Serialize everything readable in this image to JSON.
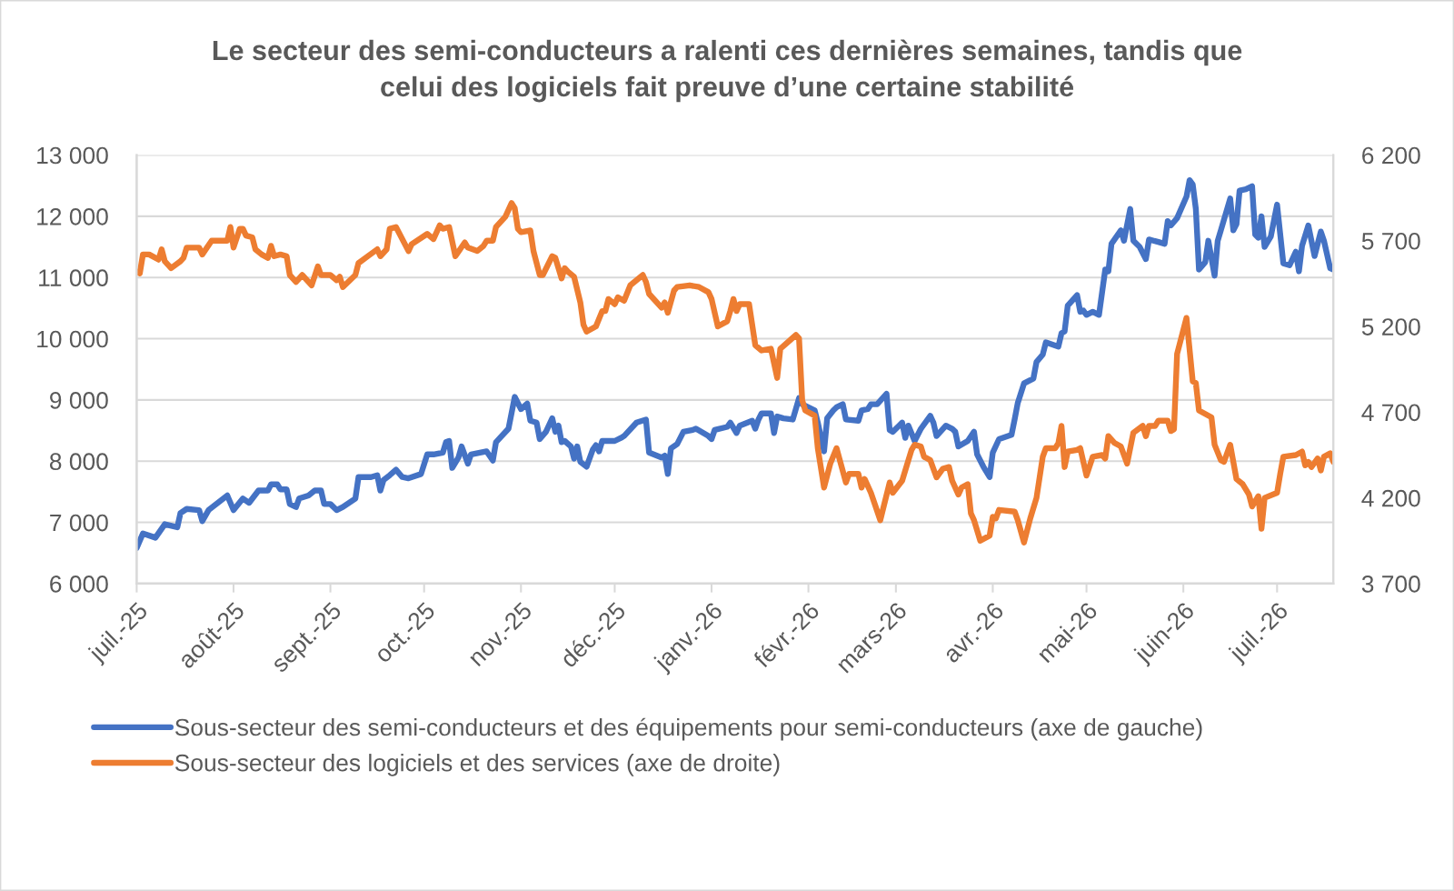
{
  "chart_data": {
    "type": "line",
    "title": "Le secteur des semi-conducteurs a ralenti ces dernières semaines, tandis que\ncelui des logiciels fait preuve d’une certaine stabilité",
    "xlim": [
      "2025-07-01",
      "2026-07-19"
    ],
    "xticks": [
      {
        "value": "2025-07-01",
        "label": "juil.-25"
      },
      {
        "value": "2025-08-01",
        "label": "août-25"
      },
      {
        "value": "2025-09-01",
        "label": "sept.-25"
      },
      {
        "value": "2025-10-01",
        "label": "oct.-25"
      },
      {
        "value": "2025-11-01",
        "label": "nov.-25"
      },
      {
        "value": "2025-12-01",
        "label": "déc.-25"
      },
      {
        "value": "2026-01-01",
        "label": "janv.-26"
      },
      {
        "value": "2026-02-01",
        "label": "févr.-26"
      },
      {
        "value": "2026-03-01",
        "label": "mars-26"
      },
      {
        "value": "2026-04-01",
        "label": "avr.-26"
      },
      {
        "value": "2026-05-01",
        "label": "mai-26"
      },
      {
        "value": "2026-06-01",
        "label": "juin-26"
      },
      {
        "value": "2026-07-01",
        "label": "juil.-26"
      }
    ],
    "ylim": [
      6000,
      13000
    ],
    "yticks": [
      {
        "value": 6000,
        "label": "6 000"
      },
      {
        "value": 7000,
        "label": "7 000"
      },
      {
        "value": 8000,
        "label": "8 000"
      },
      {
        "value": 9000,
        "label": "9 000"
      },
      {
        "value": 10000,
        "label": "10 000"
      },
      {
        "value": 11000,
        "label": "11 000"
      },
      {
        "value": 12000,
        "label": "12 000"
      },
      {
        "value": 13000,
        "label": "13 000"
      }
    ],
    "y2lim": [
      3700,
      6200
    ],
    "y2ticks": [
      {
        "value": 3700,
        "label": "3 700"
      },
      {
        "value": 4200,
        "label": "4 200"
      },
      {
        "value": 4700,
        "label": "4 700"
      },
      {
        "value": 5200,
        "label": "5 200"
      },
      {
        "value": 5700,
        "label": "5 700"
      },
      {
        "value": 6200,
        "label": "6 200"
      }
    ],
    "grid": "y",
    "legend": "bottom",
    "series": [
      {
        "name": "Sous-secteur des semi-conducteurs et des équipements pour semi-conducteurs (axe de gauche)",
        "color": "#4472c4",
        "axis": "y",
        "x": [
          "2025-07-01",
          "2025-07-03",
          "2025-07-07",
          "2025-07-10",
          "2025-07-14",
          "2025-07-15",
          "2025-07-17",
          "2025-07-21",
          "2025-07-22",
          "2025-07-24",
          "2025-07-30",
          "2025-08-01",
          "2025-08-04",
          "2025-08-06",
          "2025-08-09",
          "2025-08-12",
          "2025-08-13",
          "2025-08-15",
          "2025-08-16",
          "2025-08-18",
          "2025-08-19",
          "2025-08-21",
          "2025-08-22",
          "2025-08-25",
          "2025-08-27",
          "2025-08-29",
          "2025-08-30",
          "2025-09-01",
          "2025-09-03",
          "2025-09-05",
          "2025-09-09",
          "2025-09-10",
          "2025-09-14",
          "2025-09-16",
          "2025-09-17",
          "2025-09-18",
          "2025-09-20",
          "2025-09-22",
          "2025-09-24",
          "2025-09-26",
          "2025-09-30",
          "2025-10-02",
          "2025-10-04",
          "2025-10-07",
          "2025-10-08",
          "2025-10-09",
          "2025-10-10",
          "2025-10-12",
          "2025-10-13",
          "2025-10-15",
          "2025-10-16",
          "2025-10-21",
          "2025-10-23",
          "2025-10-24",
          "2025-10-28",
          "2025-10-30",
          "2025-11-01",
          "2025-11-03",
          "2025-11-04",
          "2025-11-06",
          "2025-11-07",
          "2025-11-09",
          "2025-11-11",
          "2025-11-12",
          "2025-11-13",
          "2025-11-14",
          "2025-11-15",
          "2025-11-17",
          "2025-11-18",
          "2025-11-19",
          "2025-11-20",
          "2025-11-22",
          "2025-11-24",
          "2025-11-25",
          "2025-11-26",
          "2025-11-27",
          "2025-12-01",
          "2025-12-03",
          "2025-12-04",
          "2025-12-08",
          "2025-12-11",
          "2025-12-12",
          "2025-12-16",
          "2025-12-17",
          "2025-12-18",
          "2025-12-19",
          "2025-12-21",
          "2025-12-23",
          "2025-12-26",
          "2025-12-27",
          "2025-12-31",
          "2026-01-01",
          "2026-01-02",
          "2026-01-06",
          "2026-01-07",
          "2026-01-09",
          "2026-01-10",
          "2026-01-14",
          "2026-01-15",
          "2026-01-16",
          "2026-01-17",
          "2026-01-20",
          "2026-01-21",
          "2026-01-22",
          "2026-01-24",
          "2026-01-27",
          "2026-01-29",
          "2026-01-30",
          "2026-02-03",
          "2026-02-04",
          "2026-02-06",
          "2026-02-07",
          "2026-02-09",
          "2026-02-10",
          "2026-02-12",
          "2026-02-13",
          "2026-02-17",
          "2026-02-18",
          "2026-02-20",
          "2026-02-21",
          "2026-02-23",
          "2026-02-26",
          "2026-02-27",
          "2026-02-28",
          "2026-03-02",
          "2026-03-03",
          "2026-03-04",
          "2026-03-05",
          "2026-03-07",
          "2026-03-09",
          "2026-03-12",
          "2026-03-13",
          "2026-03-14",
          "2026-03-17",
          "2026-03-19",
          "2026-03-20",
          "2026-03-21",
          "2026-03-24",
          "2026-03-26",
          "2026-03-27",
          "2026-03-29",
          "2026-03-31",
          "2026-04-01",
          "2026-04-03",
          "2026-04-07",
          "2026-04-08",
          "2026-04-09",
          "2026-04-11",
          "2026-04-14",
          "2026-04-15",
          "2026-04-17",
          "2026-04-18",
          "2026-04-22",
          "2026-04-23",
          "2026-04-24",
          "2026-04-25",
          "2026-04-28",
          "2026-04-29",
          "2026-04-30",
          "2026-05-01",
          "2026-05-03",
          "2026-05-05",
          "2026-05-07",
          "2026-05-08",
          "2026-05-09",
          "2026-05-12",
          "2026-05-13",
          "2026-05-15",
          "2026-05-16",
          "2026-05-18",
          "2026-05-20",
          "2026-05-21",
          "2026-05-24",
          "2026-05-26",
          "2026-05-27",
          "2026-05-28",
          "2026-05-30",
          "2026-06-02",
          "2026-06-03",
          "2026-06-04",
          "2026-06-05",
          "2026-06-06",
          "2026-06-08",
          "2026-06-09",
          "2026-06-11",
          "2026-06-12",
          "2026-06-13",
          "2026-06-16",
          "2026-06-17",
          "2026-06-18",
          "2026-06-19",
          "2026-06-21",
          "2026-06-23",
          "2026-06-24",
          "2026-06-25",
          "2026-06-26",
          "2026-06-27",
          "2026-06-29",
          "2026-07-01",
          "2026-07-03",
          "2026-07-05",
          "2026-07-07",
          "2026-07-08",
          "2026-07-09",
          "2026-07-11",
          "2026-07-13",
          "2026-07-15",
          "2026-07-16",
          "2026-07-18",
          "2026-07-19"
        ],
        "values": [
          6580,
          6820,
          6750,
          6970,
          6920,
          7150,
          7220,
          7200,
          7020,
          7200,
          7440,
          7200,
          7390,
          7320,
          7520,
          7520,
          7620,
          7620,
          7540,
          7540,
          7300,
          7250,
          7390,
          7440,
          7520,
          7520,
          7300,
          7300,
          7200,
          7250,
          7390,
          7740,
          7740,
          7770,
          7520,
          7690,
          7770,
          7860,
          7740,
          7720,
          7790,
          8110,
          8110,
          8140,
          8310,
          8330,
          7890,
          8060,
          8240,
          7960,
          8110,
          8160,
          8010,
          8310,
          8530,
          9050,
          8850,
          8940,
          8660,
          8630,
          8360,
          8480,
          8700,
          8480,
          8580,
          8310,
          8330,
          8240,
          8040,
          8240,
          7990,
          7910,
          8190,
          8260,
          8160,
          8330,
          8330,
          8380,
          8410,
          8630,
          8680,
          8140,
          8060,
          8090,
          7790,
          8210,
          8280,
          8480,
          8510,
          8530,
          8410,
          8360,
          8510,
          8560,
          8630,
          8460,
          8580,
          8660,
          8530,
          8680,
          8780,
          8780,
          8460,
          8730,
          8700,
          8680,
          9030,
          8930,
          8830,
          8630,
          8160,
          8700,
          8830,
          8880,
          8930,
          8680,
          8660,
          8830,
          8850,
          8930,
          8930,
          9100,
          8510,
          8480,
          8580,
          8630,
          8380,
          8580,
          8330,
          8530,
          8740,
          8630,
          8410,
          8580,
          8530,
          8480,
          8240,
          8330,
          8480,
          8110,
          7910,
          7740,
          8140,
          8360,
          8430,
          8680,
          8950,
          9270,
          9350,
          9620,
          9740,
          9940,
          9870,
          10090,
          10120,
          10540,
          10710,
          10440,
          10460,
          10390,
          10440,
          10390,
          11130,
          11100,
          11550,
          11770,
          11600,
          12120,
          11600,
          11500,
          11300,
          11620,
          11580,
          11550,
          11920,
          11850,
          11970,
          12320,
          12590,
          12520,
          12120,
          11130,
          11250,
          11600,
          11030,
          11600,
          11770,
          12290,
          11770,
          11870,
          12420,
          12440,
          12490,
          11700,
          11650,
          12000,
          11500,
          11670,
          12190,
          11230,
          11200,
          11420,
          11100,
          11520,
          11850,
          11350,
          11750,
          11600,
          11150,
          11130
        ]
      },
      {
        "name": "Sous-secteur des logiciels et des services (axe de droite)",
        "color": "#ed7d31",
        "axis": "y2",
        "x": [
          "2025-07-01",
          "2025-07-02",
          "2025-07-03",
          "2025-07-05",
          "2025-07-08",
          "2025-07-09",
          "2025-07-10",
          "2025-07-12",
          "2025-07-15",
          "2025-07-16",
          "2025-07-17",
          "2025-07-21",
          "2025-07-22",
          "2025-07-25",
          "2025-07-30",
          "2025-07-31",
          "2025-08-01",
          "2025-08-03",
          "2025-08-04",
          "2025-08-05",
          "2025-08-07",
          "2025-08-08",
          "2025-08-10",
          "2025-08-12",
          "2025-08-13",
          "2025-08-14",
          "2025-08-16",
          "2025-08-18",
          "2025-08-19",
          "2025-08-21",
          "2025-08-23",
          "2025-08-26",
          "2025-08-28",
          "2025-08-29",
          "2025-09-01",
          "2025-09-03",
          "2025-09-04",
          "2025-09-05",
          "2025-09-09",
          "2025-09-10",
          "2025-09-13",
          "2025-09-16",
          "2025-09-17",
          "2025-09-19",
          "2025-09-20",
          "2025-09-22",
          "2025-09-26",
          "2025-09-27",
          "2025-10-02",
          "2025-10-04",
          "2025-10-06",
          "2025-10-07",
          "2025-10-09",
          "2025-10-11",
          "2025-10-14",
          "2025-10-15",
          "2025-10-18",
          "2025-10-20",
          "2025-10-21",
          "2025-10-23",
          "2025-10-24",
          "2025-10-27",
          "2025-10-29",
          "2025-10-30",
          "2025-10-31",
          "2025-11-01",
          "2025-11-04",
          "2025-11-05",
          "2025-11-07",
          "2025-11-08",
          "2025-11-11",
          "2025-11-12",
          "2025-11-14",
          "2025-11-15",
          "2025-11-16",
          "2025-11-18",
          "2025-11-20",
          "2025-11-21",
          "2025-11-22",
          "2025-11-25",
          "2025-11-27",
          "2025-11-28",
          "2025-11-29",
          "2025-12-01",
          "2025-12-02",
          "2025-12-04",
          "2025-12-06",
          "2025-12-10",
          "2025-12-11",
          "2025-12-12",
          "2025-12-16",
          "2025-12-17",
          "2025-12-18",
          "2025-12-20",
          "2025-12-21",
          "2025-12-25",
          "2025-12-28",
          "2025-12-31",
          "2026-01-01",
          "2026-01-03",
          "2026-01-06",
          "2026-01-07",
          "2026-01-08",
          "2026-01-09",
          "2026-01-10",
          "2026-01-13",
          "2026-01-15",
          "2026-01-17",
          "2026-01-20",
          "2026-01-22",
          "2026-01-23",
          "2026-01-28",
          "2026-01-29",
          "2026-01-30",
          "2026-01-31",
          "2026-02-03",
          "2026-02-04",
          "2026-02-06",
          "2026-02-08",
          "2026-02-10",
          "2026-02-13",
          "2026-02-14",
          "2026-02-17",
          "2026-02-18",
          "2026-02-19",
          "2026-02-21",
          "2026-02-24",
          "2026-02-27",
          "2026-02-28",
          "2026-03-03",
          "2026-03-06",
          "2026-03-07",
          "2026-03-09",
          "2026-03-10",
          "2026-03-12",
          "2026-03-14",
          "2026-03-16",
          "2026-03-18",
          "2026-03-19",
          "2026-03-21",
          "2026-03-22",
          "2026-03-24",
          "2026-03-25",
          "2026-03-26",
          "2026-03-28",
          "2026-03-31",
          "2026-04-01",
          "2026-04-02",
          "2026-04-03",
          "2026-04-08",
          "2026-04-09",
          "2026-04-11",
          "2026-04-13",
          "2026-04-15",
          "2026-04-17",
          "2026-04-18",
          "2026-04-21",
          "2026-04-22",
          "2026-04-23",
          "2026-04-24",
          "2026-04-25",
          "2026-04-28",
          "2026-04-29",
          "2026-05-01",
          "2026-05-03",
          "2026-05-06",
          "2026-05-07",
          "2026-05-08",
          "2026-05-10",
          "2026-05-12",
          "2026-05-14",
          "2026-05-16",
          "2026-05-19",
          "2026-05-20",
          "2026-05-21",
          "2026-05-23",
          "2026-05-24",
          "2026-05-27",
          "2026-05-28",
          "2026-05-29",
          "2026-05-30",
          "2026-06-02",
          "2026-06-04",
          "2026-06-05",
          "2026-06-06",
          "2026-06-10",
          "2026-06-11",
          "2026-06-13",
          "2026-06-14",
          "2026-06-16",
          "2026-06-18",
          "2026-06-20",
          "2026-06-22",
          "2026-06-23",
          "2026-06-25",
          "2026-06-26",
          "2026-06-27",
          "2026-07-01",
          "2026-07-02",
          "2026-07-03",
          "2026-07-07",
          "2026-07-09",
          "2026-07-10",
          "2026-07-11",
          "2026-07-12",
          "2026-07-14",
          "2026-07-15",
          "2026-07-16",
          "2026-07-18",
          "2026-07-19"
        ],
        "values": [
          5520,
          5510,
          5620,
          5620,
          5590,
          5650,
          5580,
          5540,
          5580,
          5600,
          5660,
          5660,
          5620,
          5700,
          5700,
          5780,
          5660,
          5770,
          5770,
          5730,
          5720,
          5650,
          5620,
          5600,
          5670,
          5610,
          5620,
          5610,
          5500,
          5460,
          5500,
          5440,
          5550,
          5500,
          5500,
          5470,
          5490,
          5430,
          5500,
          5570,
          5610,
          5650,
          5610,
          5650,
          5770,
          5780,
          5640,
          5680,
          5740,
          5710,
          5790,
          5770,
          5780,
          5610,
          5690,
          5660,
          5640,
          5670,
          5700,
          5700,
          5780,
          5840,
          5920,
          5890,
          5770,
          5750,
          5760,
          5640,
          5500,
          5500,
          5610,
          5600,
          5480,
          5540,
          5520,
          5490,
          5340,
          5210,
          5170,
          5200,
          5290,
          5290,
          5360,
          5330,
          5370,
          5350,
          5440,
          5500,
          5460,
          5390,
          5310,
          5340,
          5280,
          5410,
          5430,
          5440,
          5430,
          5400,
          5360,
          5200,
          5230,
          5290,
          5360,
          5290,
          5330,
          5330,
          5090,
          5060,
          5070,
          4900,
          5070,
          5150,
          5130,
          4770,
          4710,
          4680,
          4490,
          4260,
          4400,
          4490,
          4290,
          4340,
          4340,
          4260,
          4310,
          4230,
          4070,
          4290,
          4230,
          4300,
          4480,
          4510,
          4500,
          4440,
          4420,
          4320,
          4370,
          4380,
          4300,
          4220,
          4260,
          4280,
          4110,
          4070,
          3950,
          3980,
          4090,
          4080,
          4130,
          4120,
          4070,
          3940,
          4080,
          4200,
          4440,
          4490,
          4490,
          4520,
          4620,
          4380,
          4470,
          4480,
          4490,
          4330,
          4440,
          4450,
          4430,
          4560,
          4520,
          4500,
          4400,
          4580,
          4620,
          4560,
          4620,
          4620,
          4650,
          4650,
          4590,
          4600,
          5040,
          5250,
          4880,
          4870,
          4710,
          4670,
          4510,
          4420,
          4410,
          4510,
          4310,
          4280,
          4220,
          4150,
          4210,
          4020,
          4200,
          4230,
          4340,
          4440,
          4450,
          4470,
          4390,
          4410,
          4380,
          4430,
          4360,
          4440,
          4460,
          4410
        ]
      }
    ]
  }
}
